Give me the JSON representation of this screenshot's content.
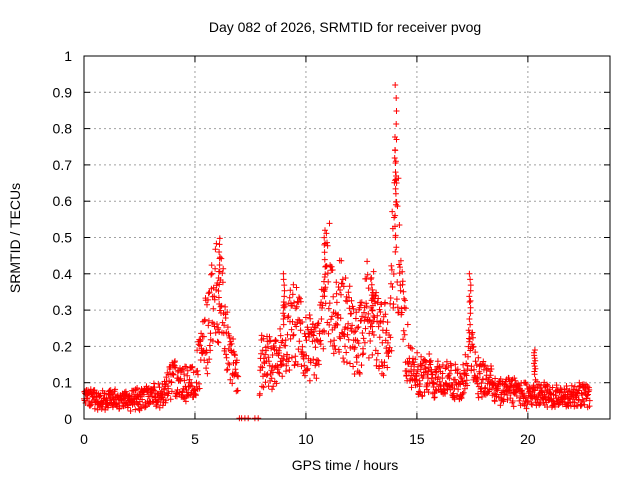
{
  "chart_data": {
    "type": "scatter",
    "title": "Day 082 of 2026, SRMTID for receiver pvog",
    "xlabel": "GPS time / hours",
    "ylabel": "SRMTID / TECUs",
    "xlim": [
      0,
      23.7
    ],
    "ylim": [
      0,
      1
    ],
    "xticks": [
      0,
      5,
      10,
      15,
      20
    ],
    "yticks": [
      0,
      0.1,
      0.2,
      0.3,
      0.4,
      0.5,
      0.6,
      0.7,
      0.8,
      0.9,
      1
    ],
    "ytick_labels": [
      "0",
      "0.1",
      "0.2",
      "0.3",
      "0.4",
      "0.5",
      "0.6",
      "0.7",
      "0.8",
      "0.9",
      "1"
    ],
    "grid": true,
    "marker": "plus",
    "series": [
      {
        "name": "SRMTID",
        "color": "#ff0000",
        "envelope": {
          "x": [
            0,
            0.5,
            1,
            1.5,
            2,
            2.5,
            3,
            3.5,
            4,
            4.5,
            5,
            5.3,
            5.6,
            5.9,
            6.1,
            6.4,
            6.7,
            6.9,
            7.3,
            7.6,
            7.8,
            8,
            8.3,
            8.6,
            9,
            9.5,
            10,
            10.5,
            10.8,
            11,
            11.3,
            11.6,
            12,
            12.3,
            12.6,
            12.9,
            13.2,
            13.5,
            13.8,
            14,
            14.1,
            14.3,
            14.5,
            14.8,
            15,
            15.5,
            16,
            16.5,
            17,
            17.3,
            17.4,
            17.6,
            18,
            18.5,
            19,
            19.5,
            20,
            20.3,
            20.6,
            21,
            21.5,
            22,
            22.5,
            22.8
          ],
          "y": [
            0.06,
            0.05,
            0.05,
            0.05,
            0.05,
            0.06,
            0.06,
            0.06,
            0.11,
            0.1,
            0.1,
            0.18,
            0.25,
            0.32,
            0.38,
            0.2,
            0.17,
            0.1,
            0.0,
            0.0,
            0.0,
            0.16,
            0.16,
            0.14,
            0.22,
            0.25,
            0.2,
            0.18,
            0.3,
            0.38,
            0.28,
            0.3,
            0.24,
            0.2,
            0.24,
            0.33,
            0.25,
            0.22,
            0.22,
            0.6,
            0.55,
            0.3,
            0.2,
            0.13,
            0.12,
            0.12,
            0.1,
            0.11,
            0.09,
            0.15,
            0.25,
            0.12,
            0.1,
            0.09,
            0.08,
            0.07,
            0.06,
            0.07,
            0.07,
            0.06,
            0.06,
            0.06,
            0.07,
            0.06
          ]
        },
        "peaks": [
          {
            "x": 6.1,
            "y": 0.46
          },
          {
            "x": 9.0,
            "y": 0.4
          },
          {
            "x": 10.85,
            "y": 0.52
          },
          {
            "x": 13.0,
            "y": 0.37
          },
          {
            "x": 14.05,
            "y": 0.92
          },
          {
            "x": 14.05,
            "y": 0.77
          },
          {
            "x": 17.4,
            "y": 0.4
          },
          {
            "x": 20.3,
            "y": 0.19
          }
        ],
        "gap_points_x": [
          7.0,
          7.1,
          7.25,
          7.4,
          7.7,
          7.85
        ],
        "gap_points_y": 0
      }
    ]
  }
}
